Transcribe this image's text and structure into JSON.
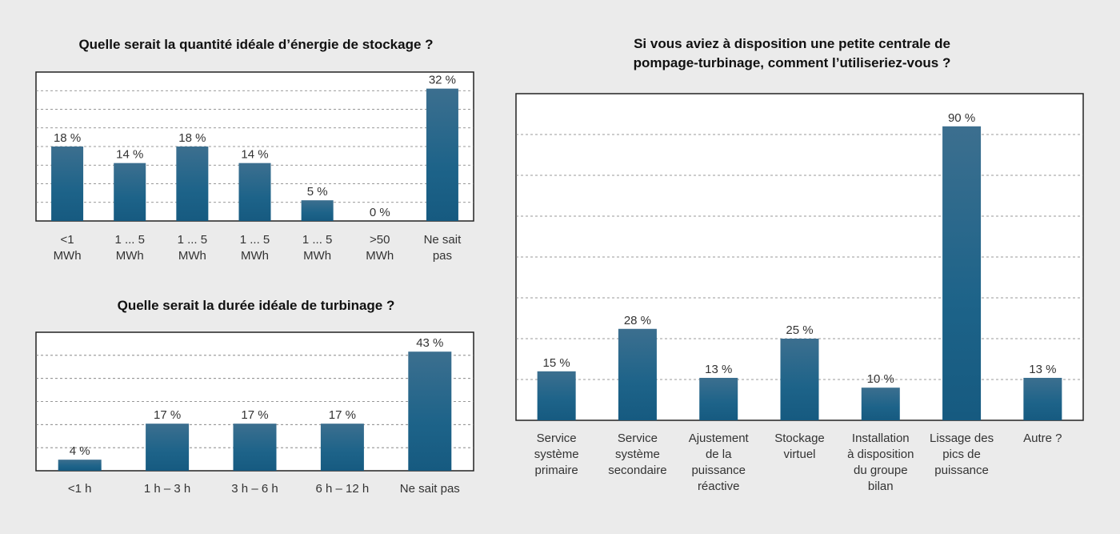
{
  "chart_data": [
    {
      "type": "bar",
      "title": "Quelle serait la quantité idéale d’énergie de stockage ?",
      "categories": [
        [
          "<1",
          "MWh"
        ],
        [
          "1 ... 5",
          "MWh"
        ],
        [
          "1 ... 5",
          "MWh"
        ],
        [
          "1 ... 5",
          "MWh"
        ],
        [
          "1 ... 5",
          "MWh"
        ],
        [
          ">50",
          "MWh"
        ],
        [
          "Ne sait",
          "pas"
        ]
      ],
      "values": [
        18,
        14,
        18,
        14,
        5,
        0,
        32
      ],
      "value_labels": [
        "18 %",
        "14 %",
        "18 %",
        "14 %",
        "5 %",
        "0 %",
        "32 %"
      ],
      "ylim": [
        0,
        36
      ],
      "grid": true,
      "bar_color": "#1d6389"
    },
    {
      "type": "bar",
      "title": "Quelle serait la durée idéale de turbinage ?",
      "categories": [
        [
          "<1 h"
        ],
        [
          "1 h – 3 h"
        ],
        [
          "3 h – 6 h"
        ],
        [
          "6 h – 12 h"
        ],
        [
          "Ne sait pas"
        ]
      ],
      "values": [
        4,
        17,
        17,
        17,
        43
      ],
      "value_labels": [
        "4 %",
        "17 %",
        "17 %",
        "17 %",
        "43 %"
      ],
      "ylim": [
        0,
        50
      ],
      "grid": true,
      "bar_color": "#1d6389"
    },
    {
      "type": "bar",
      "title": "Si vous aviez à disposition une petite centrale de pompage-turbinage, comment l’utiliseriez-vous ?",
      "title_lines": [
        "Si vous aviez à disposition une petite centrale de",
        "pompage-turbinage, comment l’utiliseriez-vous ?"
      ],
      "categories": [
        [
          "Service",
          "système",
          "primaire"
        ],
        [
          "Service",
          "système",
          "secondaire"
        ],
        [
          "Ajustement",
          "de la",
          "puissance",
          "réactive"
        ],
        [
          "Stockage",
          "virtuel"
        ],
        [
          "Installation",
          "à disposition",
          "du groupe",
          "bilan"
        ],
        [
          "Lissage des",
          "pics de",
          "puissance"
        ],
        [
          "Autre ?"
        ]
      ],
      "values": [
        15,
        28,
        13,
        25,
        10,
        90,
        13
      ],
      "value_labels": [
        "15 %",
        "28 %",
        "13 %",
        "25 %",
        "10 %",
        "90 %",
        "13 %"
      ],
      "ylim": [
        0,
        100
      ],
      "grid": true,
      "bar_color": "#1d6389"
    }
  ]
}
